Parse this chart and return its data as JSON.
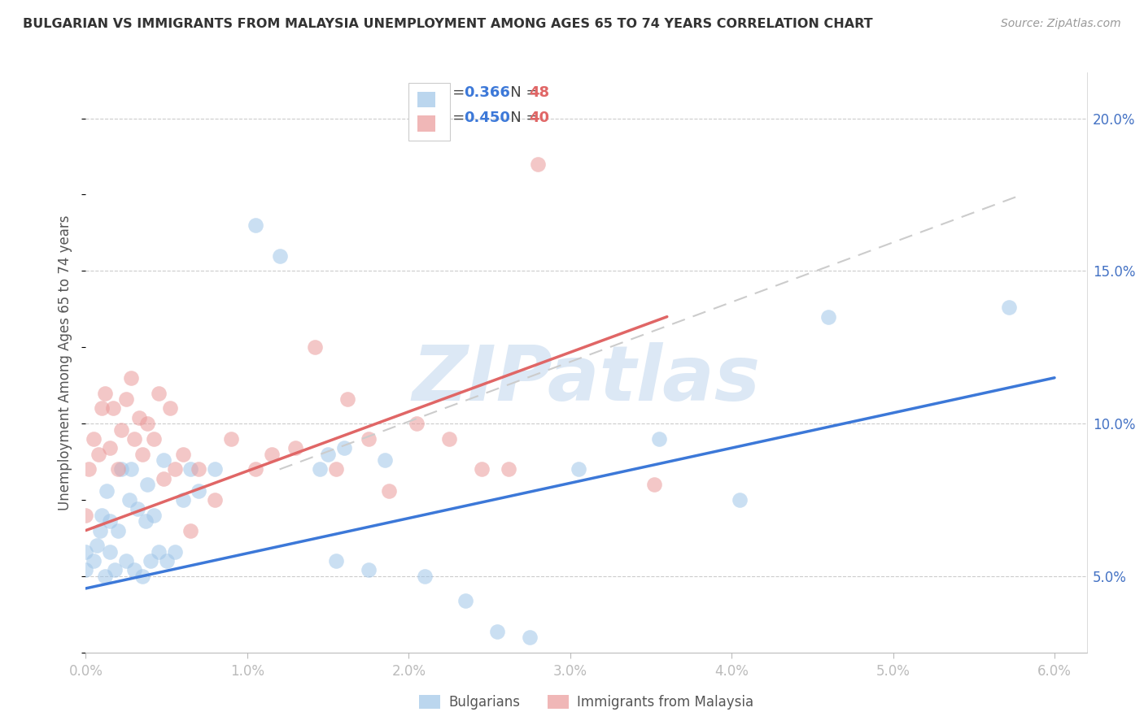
{
  "title": "BULGARIAN VS IMMIGRANTS FROM MALAYSIA UNEMPLOYMENT AMONG AGES 65 TO 74 YEARS CORRELATION CHART",
  "source": "Source: ZipAtlas.com",
  "ylabel": "Unemployment Among Ages 65 to 74 years",
  "xlim": [
    0.0,
    6.2
  ],
  "ylim": [
    2.5,
    21.5
  ],
  "xticks": [
    0.0,
    1.0,
    2.0,
    3.0,
    4.0,
    5.0,
    6.0
  ],
  "yticks": [
    5.0,
    10.0,
    15.0,
    20.0
  ],
  "ytick_labels": [
    "5.0%",
    "10.0%",
    "15.0%",
    "20.0%"
  ],
  "xtick_labels": [
    "0.0%",
    "1.0%",
    "2.0%",
    "3.0%",
    "4.0%",
    "5.0%",
    "6.0%"
  ],
  "legend1_r": "0.366",
  "legend1_n": "48",
  "legend2_r": "0.450",
  "legend2_n": "40",
  "blue_scatter_color": "#9fc5e8",
  "pink_scatter_color": "#ea9999",
  "blue_line_color": "#3c78d8",
  "pink_line_color": "#e06666",
  "gray_dash_color": "#cccccc",
  "watermark": "ZIPatlas",
  "watermark_color": "#dce8f5",
  "legend_r_color": "#3c78d8",
  "legend_n_color": "#e06666",
  "bulgarians_x": [
    0.0,
    0.0,
    0.05,
    0.07,
    0.09,
    0.1,
    0.12,
    0.13,
    0.15,
    0.15,
    0.18,
    0.2,
    0.22,
    0.25,
    0.27,
    0.28,
    0.3,
    0.32,
    0.35,
    0.37,
    0.38,
    0.4,
    0.42,
    0.45,
    0.48,
    0.5,
    0.55,
    0.6,
    0.65,
    0.7,
    0.8,
    1.05,
    1.2,
    1.45,
    1.5,
    1.55,
    1.6,
    1.75,
    1.85,
    2.1,
    2.35,
    2.55,
    2.75,
    3.05,
    3.55,
    4.05,
    4.6,
    5.72
  ],
  "bulgarians_y": [
    5.2,
    5.8,
    5.5,
    6.0,
    6.5,
    7.0,
    5.0,
    7.8,
    5.8,
    6.8,
    5.2,
    6.5,
    8.5,
    5.5,
    7.5,
    8.5,
    5.2,
    7.2,
    5.0,
    6.8,
    8.0,
    5.5,
    7.0,
    5.8,
    8.8,
    5.5,
    5.8,
    7.5,
    8.5,
    7.8,
    8.5,
    16.5,
    15.5,
    8.5,
    9.0,
    5.5,
    9.2,
    5.2,
    8.8,
    5.0,
    4.2,
    3.2,
    3.0,
    8.5,
    9.5,
    7.5,
    13.5,
    13.8
  ],
  "malaysia_x": [
    0.0,
    0.02,
    0.05,
    0.08,
    0.1,
    0.12,
    0.15,
    0.17,
    0.2,
    0.22,
    0.25,
    0.28,
    0.3,
    0.33,
    0.35,
    0.38,
    0.42,
    0.45,
    0.48,
    0.52,
    0.55,
    0.6,
    0.65,
    0.7,
    0.8,
    0.9,
    1.05,
    1.15,
    1.3,
    1.42,
    1.55,
    1.62,
    1.75,
    1.88,
    2.05,
    2.25,
    2.45,
    2.62,
    2.8,
    3.52
  ],
  "malaysia_y": [
    7.0,
    8.5,
    9.5,
    9.0,
    10.5,
    11.0,
    9.2,
    10.5,
    8.5,
    9.8,
    10.8,
    11.5,
    9.5,
    10.2,
    9.0,
    10.0,
    9.5,
    11.0,
    8.2,
    10.5,
    8.5,
    9.0,
    6.5,
    8.5,
    7.5,
    9.5,
    8.5,
    9.0,
    9.2,
    12.5,
    8.5,
    10.8,
    9.5,
    7.8,
    10.0,
    9.5,
    8.5,
    8.5,
    18.5,
    8.0
  ],
  "blue_line_x0": 0.0,
  "blue_line_x1": 6.0,
  "blue_line_y0": 4.6,
  "blue_line_y1": 11.5,
  "pink_line_x0": 0.0,
  "pink_line_x1": 3.6,
  "pink_line_y0": 6.5,
  "pink_line_y1": 13.5,
  "gray_dash_x0": 1.2,
  "gray_dash_x1": 5.8,
  "gray_dash_y0": 8.5,
  "gray_dash_y1": 17.5
}
